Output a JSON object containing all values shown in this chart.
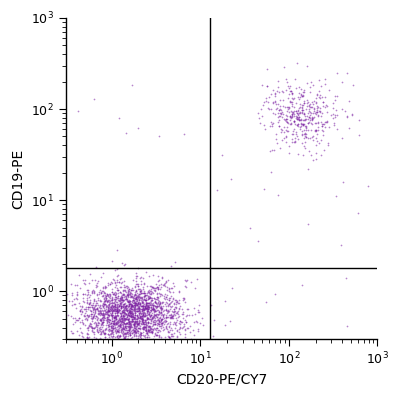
{
  "xlabel": "CD20-PE/CY7",
  "ylabel": "CD19-PE",
  "xlim": [
    0.3,
    1000
  ],
  "ylim": [
    0.3,
    1000
  ],
  "dot_color": "#7B1FA2",
  "dot_alpha": 0.55,
  "dot_size": 1.5,
  "quadrant_line_x": 13,
  "quadrant_line_y": 1.8,
  "background_color": "#ffffff",
  "seed": 42,
  "pop1_n": 2500,
  "pop1_x_mean_log": 0.2,
  "pop1_x_std_log": 0.3,
  "pop1_y_mean_log": -0.25,
  "pop1_y_std_log": 0.18,
  "pop2_n": 450,
  "pop2_x_mean_log": 2.15,
  "pop2_x_std_log": 0.22,
  "pop2_y_mean_log": 1.95,
  "pop2_y_std_log": 0.18,
  "pop3_n": 8,
  "pop4_n": 8,
  "tick_labels": [
    "10$^0$",
    "10$^1$",
    "10$^2$",
    "10$^3$"
  ],
  "tick_values": [
    1,
    10,
    100,
    1000
  ]
}
